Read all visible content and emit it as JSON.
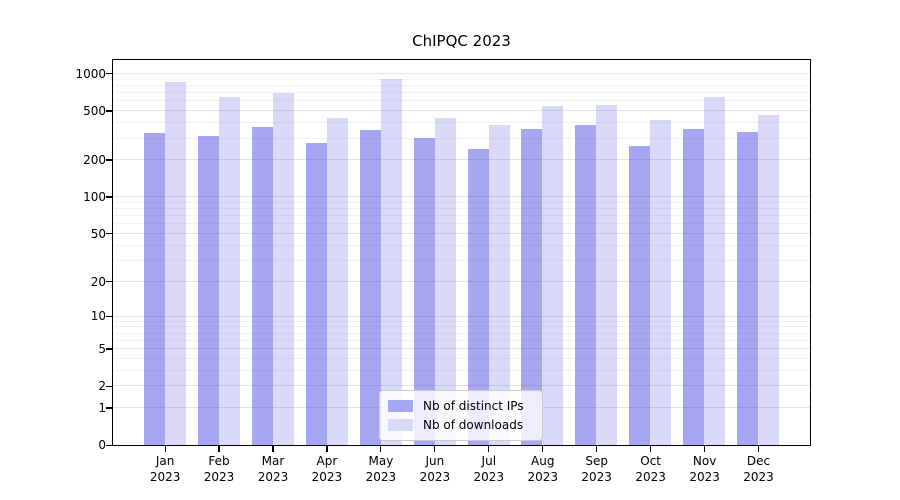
{
  "chart_data": {
    "type": "bar",
    "title": "ChIPQC 2023",
    "categories": [
      "Jan",
      "Feb",
      "Mar",
      "Apr",
      "May",
      "Jun",
      "Jul",
      "Aug",
      "Sep",
      "Oct",
      "Nov",
      "Dec"
    ],
    "year_label": "2023",
    "series": [
      {
        "name": "Nb of distinct IPs",
        "color": "#a6a6f2",
        "values": [
          330,
          310,
          370,
          275,
          350,
          300,
          245,
          355,
          380,
          260,
          355,
          335
        ]
      },
      {
        "name": "Nb of downloads",
        "color": "#dadaf8",
        "values": [
          855,
          650,
          700,
          440,
          910,
          440,
          380,
          545,
          555,
          420,
          640,
          460
        ]
      }
    ],
    "yscale": "log1p",
    "ylim": [
      0,
      1284
    ],
    "yticks": [
      0,
      1,
      2,
      5,
      10,
      20,
      50,
      100,
      200,
      500,
      1000
    ],
    "minor_gridlines": [
      3,
      4,
      6,
      7,
      8,
      9,
      30,
      40,
      60,
      70,
      80,
      90,
      300,
      400,
      600,
      700,
      800,
      900
    ],
    "grid": "horizontal",
    "legend_position": "lower-center",
    "colors": {
      "axis": "#000000",
      "grid_major": "#dcdcdf",
      "grid_minor": "#efeff1",
      "background": "#ffffff"
    }
  }
}
